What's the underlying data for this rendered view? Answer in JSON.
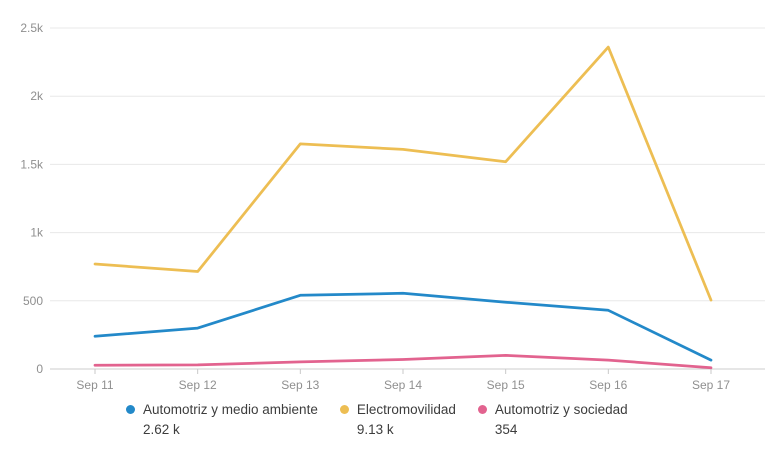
{
  "chart_data": {
    "type": "line",
    "title": "",
    "xlabel": "",
    "ylabel": "",
    "x": [
      "Sep 11",
      "Sep 12",
      "Sep 13",
      "Sep 14",
      "Sep 15",
      "Sep 16",
      "Sep 17"
    ],
    "series": [
      {
        "name": "Automotriz y medio ambiente",
        "total_label": "2.62 k",
        "color": "#2389c9",
        "values": [
          240,
          300,
          540,
          555,
          490,
          430,
          65
        ]
      },
      {
        "name": "Electromovilidad",
        "total_label": "9.13 k",
        "color": "#edbe53",
        "values": [
          770,
          715,
          1650,
          1610,
          1520,
          2360,
          505
        ]
      },
      {
        "name": "Automotriz y sociedad",
        "total_label": "354",
        "color": "#e2638f",
        "values": [
          28,
          30,
          52,
          70,
          100,
          65,
          9
        ]
      }
    ],
    "y_ticks": [
      {
        "label": "0",
        "value": 0
      },
      {
        "label": "500",
        "value": 500
      },
      {
        "label": "1k",
        "value": 1000
      },
      {
        "label": "1.5k",
        "value": 1500
      },
      {
        "label": "2k",
        "value": 2000
      },
      {
        "label": "2.5k",
        "value": 2500
      }
    ],
    "ylim": [
      0,
      2500
    ],
    "grid": true,
    "legend_position": "bottom"
  },
  "colors": {
    "background": "#ffffff",
    "gridline": "#e8e8e8",
    "axis": "#cccccc",
    "tick_label": "#8f8f8f",
    "legend_text": "#3d3d3d"
  }
}
